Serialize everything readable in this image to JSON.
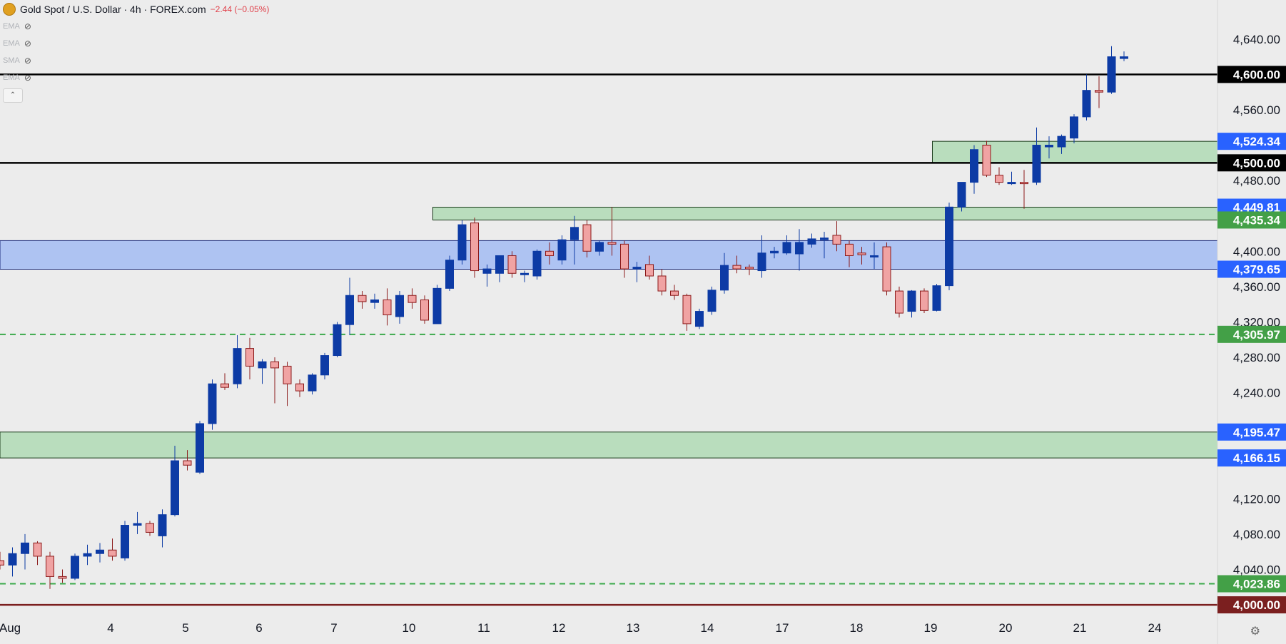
{
  "header": {
    "title": "Gold Spot / U.S. Dollar · 4h · FOREX.com",
    "change": "−2.44 (−0.05%)"
  },
  "indicators": [
    "EMA",
    "EMA",
    "SMA",
    "EMA"
  ],
  "colors": {
    "up": "#0d3ba5",
    "down": "#f0a3a3",
    "down_border": "#8b1a1a",
    "zone_blue": "#aec3f2",
    "zone_green": "#b9ddbd",
    "green_dash": "#3aaa4a",
    "tag_blue": "#2962ff",
    "tag_green": "#43a047",
    "tag_black": "#000000",
    "tag_maroon": "#7b1f1f"
  },
  "chart_data": {
    "type": "candlestick",
    "yrange": [
      3992,
      4660
    ],
    "y_ticks": [
      "4,640.00",
      "4,560.00",
      "4,480.00",
      "4,400.00",
      "4,360.00",
      "4,320.00",
      "4,280.00",
      "4,240.00",
      "4,120.00",
      "4,080.00",
      "4,040.00"
    ],
    "x_labels": [
      "Aug",
      "4",
      "5",
      "6",
      "7",
      "10",
      "11",
      "12",
      "13",
      "14",
      "17",
      "18",
      "19",
      "20",
      "21",
      "24"
    ],
    "candles": [
      {
        "o": 4050,
        "h": 4060,
        "l": 4040,
        "c": 4045
      },
      {
        "o": 4045,
        "h": 4065,
        "l": 4032,
        "c": 4058
      },
      {
        "o": 4058,
        "h": 4080,
        "l": 4040,
        "c": 4070
      },
      {
        "o": 4070,
        "h": 4072,
        "l": 4045,
        "c": 4055
      },
      {
        "o": 4055,
        "h": 4060,
        "l": 4018,
        "c": 4032
      },
      {
        "o": 4032,
        "h": 4040,
        "l": 4025,
        "c": 4030
      },
      {
        "o": 4030,
        "h": 4058,
        "l": 4028,
        "c": 4055
      },
      {
        "o": 4055,
        "h": 4068,
        "l": 4045,
        "c": 4058
      },
      {
        "o": 4058,
        "h": 4070,
        "l": 4048,
        "c": 4062
      },
      {
        "o": 4062,
        "h": 4075,
        "l": 4050,
        "c": 4055
      },
      {
        "o": 4053,
        "h": 4095,
        "l": 4050,
        "c": 4090
      },
      {
        "o": 4090,
        "h": 4105,
        "l": 4080,
        "c": 4092
      },
      {
        "o": 4092,
        "h": 4095,
        "l": 4078,
        "c": 4082
      },
      {
        "o": 4078,
        "h": 4108,
        "l": 4065,
        "c": 4102
      },
      {
        "o": 4102,
        "h": 4180,
        "l": 4100,
        "c": 4163
      },
      {
        "o": 4163,
        "h": 4175,
        "l": 4152,
        "c": 4158
      },
      {
        "o": 4150,
        "h": 4208,
        "l": 4148,
        "c": 4205
      },
      {
        "o": 4205,
        "h": 4255,
        "l": 4198,
        "c": 4250
      },
      {
        "o": 4250,
        "h": 4262,
        "l": 4243,
        "c": 4246
      },
      {
        "o": 4250,
        "h": 4305,
        "l": 4245,
        "c": 4290
      },
      {
        "o": 4290,
        "h": 4302,
        "l": 4255,
        "c": 4270
      },
      {
        "o": 4268,
        "h": 4278,
        "l": 4250,
        "c": 4275
      },
      {
        "o": 4275,
        "h": 4280,
        "l": 4228,
        "c": 4268
      },
      {
        "o": 4270,
        "h": 4275,
        "l": 4225,
        "c": 4250
      },
      {
        "o": 4250,
        "h": 4255,
        "l": 4235,
        "c": 4242
      },
      {
        "o": 4242,
        "h": 4262,
        "l": 4238,
        "c": 4260
      },
      {
        "o": 4260,
        "h": 4285,
        "l": 4255,
        "c": 4282
      },
      {
        "o": 4282,
        "h": 4320,
        "l": 4280,
        "c": 4317
      },
      {
        "o": 4317,
        "h": 4370,
        "l": 4305,
        "c": 4350
      },
      {
        "o": 4350,
        "h": 4355,
        "l": 4335,
        "c": 4343
      },
      {
        "o": 4342,
        "h": 4352,
        "l": 4335,
        "c": 4345
      },
      {
        "o": 4345,
        "h": 4358,
        "l": 4316,
        "c": 4328
      },
      {
        "o": 4326,
        "h": 4355,
        "l": 4318,
        "c": 4350
      },
      {
        "o": 4350,
        "h": 4358,
        "l": 4335,
        "c": 4342
      },
      {
        "o": 4345,
        "h": 4350,
        "l": 4318,
        "c": 4322
      },
      {
        "o": 4318,
        "h": 4362,
        "l": 4318,
        "c": 4358
      },
      {
        "o": 4358,
        "h": 4395,
        "l": 4355,
        "c": 4390
      },
      {
        "o": 4390,
        "h": 4435,
        "l": 4385,
        "c": 4430
      },
      {
        "o": 4432,
        "h": 4438,
        "l": 4370,
        "c": 4378
      },
      {
        "o": 4375,
        "h": 4385,
        "l": 4360,
        "c": 4380
      },
      {
        "o": 4375,
        "h": 4395,
        "l": 4365,
        "c": 4395
      },
      {
        "o": 4395,
        "h": 4400,
        "l": 4370,
        "c": 4375
      },
      {
        "o": 4375,
        "h": 4378,
        "l": 4365,
        "c": 4375
      },
      {
        "o": 4372,
        "h": 4402,
        "l": 4368,
        "c": 4400
      },
      {
        "o": 4400,
        "h": 4410,
        "l": 4385,
        "c": 4395
      },
      {
        "o": 4390,
        "h": 4418,
        "l": 4385,
        "c": 4413
      },
      {
        "o": 4413,
        "h": 4440,
        "l": 4385,
        "c": 4427
      },
      {
        "o": 4430,
        "h": 4435,
        "l": 4393,
        "c": 4400
      },
      {
        "o": 4400,
        "h": 4412,
        "l": 4395,
        "c": 4410
      },
      {
        "o": 4410,
        "h": 4450,
        "l": 4395,
        "c": 4408
      },
      {
        "o": 4408,
        "h": 4412,
        "l": 4370,
        "c": 4380
      },
      {
        "o": 4380,
        "h": 4388,
        "l": 4365,
        "c": 4382
      },
      {
        "o": 4385,
        "h": 4395,
        "l": 4368,
        "c": 4372
      },
      {
        "o": 4372,
        "h": 4380,
        "l": 4350,
        "c": 4355
      },
      {
        "o": 4355,
        "h": 4362,
        "l": 4345,
        "c": 4350
      },
      {
        "o": 4350,
        "h": 4352,
        "l": 4310,
        "c": 4318
      },
      {
        "o": 4315,
        "h": 4335,
        "l": 4312,
        "c": 4332
      },
      {
        "o": 4332,
        "h": 4360,
        "l": 4328,
        "c": 4356
      },
      {
        "o": 4356,
        "h": 4398,
        "l": 4352,
        "c": 4384
      },
      {
        "o": 4384,
        "h": 4395,
        "l": 4375,
        "c": 4380
      },
      {
        "o": 4382,
        "h": 4385,
        "l": 4373,
        "c": 4380
      },
      {
        "o": 4378,
        "h": 4418,
        "l": 4370,
        "c": 4398
      },
      {
        "o": 4398,
        "h": 4405,
        "l": 4392,
        "c": 4400
      },
      {
        "o": 4398,
        "h": 4418,
        "l": 4396,
        "c": 4410
      },
      {
        "o": 4397,
        "h": 4425,
        "l": 4378,
        "c": 4410
      },
      {
        "o": 4408,
        "h": 4420,
        "l": 4404,
        "c": 4414
      },
      {
        "o": 4413,
        "h": 4422,
        "l": 4392,
        "c": 4415
      },
      {
        "o": 4418,
        "h": 4434,
        "l": 4400,
        "c": 4408
      },
      {
        "o": 4408,
        "h": 4412,
        "l": 4382,
        "c": 4395
      },
      {
        "o": 4398,
        "h": 4405,
        "l": 4385,
        "c": 4396
      },
      {
        "o": 4395,
        "h": 4410,
        "l": 4380,
        "c": 4395
      },
      {
        "o": 4405,
        "h": 4410,
        "l": 4350,
        "c": 4355
      },
      {
        "o": 4355,
        "h": 4360,
        "l": 4325,
        "c": 4330
      },
      {
        "o": 4332,
        "h": 4356,
        "l": 4325,
        "c": 4355
      },
      {
        "o": 4355,
        "h": 4358,
        "l": 4330,
        "c": 4333
      },
      {
        "o": 4333,
        "h": 4363,
        "l": 4332,
        "c": 4361
      },
      {
        "o": 4361,
        "h": 4455,
        "l": 4356,
        "c": 4450
      },
      {
        "o": 4450,
        "h": 4478,
        "l": 4445,
        "c": 4478
      },
      {
        "o": 4478,
        "h": 4520,
        "l": 4465,
        "c": 4515
      },
      {
        "o": 4520,
        "h": 4525,
        "l": 4484,
        "c": 4486
      },
      {
        "o": 4486,
        "h": 4495,
        "l": 4475,
        "c": 4478
      },
      {
        "o": 4478,
        "h": 4490,
        "l": 4475,
        "c": 4478
      },
      {
        "o": 4478,
        "h": 4492,
        "l": 4448,
        "c": 4477
      },
      {
        "o": 4478,
        "h": 4540,
        "l": 4475,
        "c": 4520
      },
      {
        "o": 4518,
        "h": 4530,
        "l": 4505,
        "c": 4520
      },
      {
        "o": 4518,
        "h": 4532,
        "l": 4510,
        "c": 4530
      },
      {
        "o": 4528,
        "h": 4555,
        "l": 4522,
        "c": 4552
      },
      {
        "o": 4552,
        "h": 4600,
        "l": 4548,
        "c": 4582
      },
      {
        "o": 4582,
        "h": 4598,
        "l": 4562,
        "c": 4580
      },
      {
        "o": 4580,
        "h": 4632,
        "l": 4578,
        "c": 4620
      },
      {
        "o": 4618,
        "h": 4626,
        "l": 4615,
        "c": 4620
      }
    ],
    "zones": [
      {
        "top": 4412,
        "bottom": 4379.65,
        "color": "blue"
      },
      {
        "top": 4449.81,
        "bottom": 4435.34,
        "color": "green",
        "from_bar": 35
      },
      {
        "top": 4524.34,
        "bottom": 4500,
        "color": "green",
        "from_bar": 75
      },
      {
        "top": 4195.47,
        "bottom": 4166.15,
        "color": "green"
      }
    ],
    "hlines": [
      {
        "value": 4600,
        "style": "solid",
        "color": "black"
      },
      {
        "value": 4500,
        "style": "solid",
        "color": "black"
      },
      {
        "value": 4305.97,
        "style": "dashed",
        "color": "green"
      },
      {
        "value": 4023.86,
        "style": "dashed",
        "color": "green"
      },
      {
        "value": 4000,
        "style": "solid",
        "color": "maroon"
      }
    ],
    "price_tags": [
      {
        "value": 4600,
        "label": "4,600.00",
        "color": "black"
      },
      {
        "value": 4524.34,
        "label": "4,524.34",
        "color": "blue"
      },
      {
        "value": 4500,
        "label": "4,500.00",
        "color": "black"
      },
      {
        "value": 4449.81,
        "label": "4,449.81",
        "color": "blue"
      },
      {
        "value": 4435.34,
        "label": "4,435.34",
        "color": "green"
      },
      {
        "value": 4379.65,
        "label": "4,379.65",
        "color": "blue"
      },
      {
        "value": 4305.97,
        "label": "4,305.97",
        "color": "green"
      },
      {
        "value": 4195.47,
        "label": "4,195.47",
        "color": "blue"
      },
      {
        "value": 4166.15,
        "label": "4,166.15",
        "color": "blue"
      },
      {
        "value": 4023.86,
        "label": "4,023.86",
        "color": "green"
      },
      {
        "value": 4000,
        "label": "4,000.00",
        "color": "maroon"
      }
    ]
  }
}
